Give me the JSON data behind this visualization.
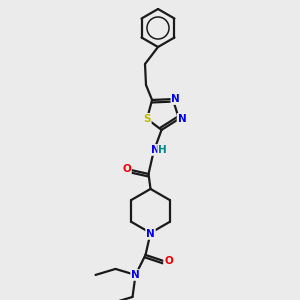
{
  "background_color": "#ebebeb",
  "bond_color": "#1a1a1a",
  "atom_colors": {
    "N": "#0000ee",
    "O": "#ee0000",
    "S": "#bbbb00",
    "H": "#008888",
    "C": "#1a1a1a"
  },
  "figsize": [
    3.0,
    3.0
  ],
  "dpi": 100
}
